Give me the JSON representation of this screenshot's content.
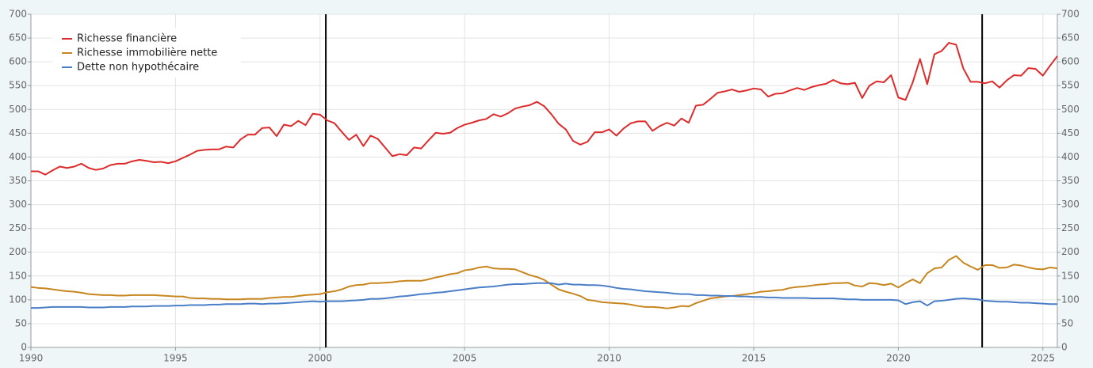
{
  "chart_data": {
    "type": "line",
    "x": [
      1990,
      1990.25,
      1990.5,
      1990.75,
      1991,
      1991.25,
      1991.5,
      1991.75,
      1992,
      1992.25,
      1992.5,
      1992.75,
      1993,
      1993.25,
      1993.5,
      1993.75,
      1994,
      1994.25,
      1994.5,
      1994.75,
      1995,
      1995.25,
      1995.5,
      1995.75,
      1996,
      1996.25,
      1996.5,
      1996.75,
      1997,
      1997.25,
      1997.5,
      1997.75,
      1998,
      1998.25,
      1998.5,
      1998.75,
      1999,
      1999.25,
      1999.5,
      1999.75,
      2000,
      2000.25,
      2000.5,
      2000.75,
      2001,
      2001.25,
      2001.5,
      2001.75,
      2002,
      2002.25,
      2002.5,
      2002.75,
      2003,
      2003.25,
      2003.5,
      2003.75,
      2004,
      2004.25,
      2004.5,
      2004.75,
      2005,
      2005.25,
      2005.5,
      2005.75,
      2006,
      2006.25,
      2006.5,
      2006.75,
      2007,
      2007.25,
      2007.5,
      2007.75,
      2008,
      2008.25,
      2008.5,
      2008.75,
      2009,
      2009.25,
      2009.5,
      2009.75,
      2010,
      2010.25,
      2010.5,
      2010.75,
      2011,
      2011.25,
      2011.5,
      2011.75,
      2012,
      2012.25,
      2012.5,
      2012.75,
      2013,
      2013.25,
      2013.5,
      2013.75,
      2014,
      2014.25,
      2014.5,
      2014.75,
      2015,
      2015.25,
      2015.5,
      2015.75,
      2016,
      2016.25,
      2016.5,
      2016.75,
      2017,
      2017.25,
      2017.5,
      2017.75,
      2018,
      2018.25,
      2018.5,
      2018.75,
      2019,
      2019.25,
      2019.5,
      2019.75,
      2020,
      2020.25,
      2020.5,
      2020.75,
      2021,
      2021.25,
      2021.5,
      2021.75,
      2022,
      2022.25,
      2022.5,
      2022.75,
      2023,
      2023.25,
      2023.5,
      2023.75,
      2024,
      2024.25,
      2024.5,
      2024.75,
      2025,
      2025.25,
      2025.5
    ],
    "series": [
      {
        "name": "Richesse financière",
        "color": "#dd2a2a",
        "values": [
          370,
          370,
          363,
          372,
          380,
          377,
          380,
          386,
          377,
          373,
          376,
          383,
          386,
          386,
          391,
          394,
          392,
          389,
          390,
          387,
          391,
          398,
          405,
          413,
          415,
          416,
          416,
          422,
          420,
          437,
          447,
          447,
          461,
          462,
          444,
          468,
          465,
          476,
          467,
          491,
          489,
          477,
          471,
          453,
          436,
          447,
          423,
          445,
          438,
          420,
          402,
          406,
          404,
          420,
          418,
          435,
          451,
          449,
          451,
          461,
          468,
          472,
          477,
          480,
          490,
          485,
          492,
          502,
          506,
          509,
          516,
          507,
          490,
          470,
          458,
          434,
          426,
          432,
          452,
          452,
          458,
          445,
          460,
          471,
          475,
          475,
          455,
          465,
          472,
          466,
          481,
          472,
          508,
          510,
          522,
          535,
          538,
          542,
          537,
          540,
          544,
          542,
          527,
          533,
          534,
          540,
          545,
          541,
          547,
          551,
          554,
          562,
          555,
          553,
          556,
          524,
          550,
          559,
          557,
          572,
          525,
          520,
          557,
          606,
          553,
          616,
          623,
          640,
          636,
          586,
          558,
          558,
          555,
          559,
          546,
          561,
          572,
          571,
          587,
          585,
          571,
          592,
          612
        ]
      },
      {
        "name": "Richesse immobilière nette",
        "color": "#c8861e",
        "values": [
          127,
          125,
          124,
          122,
          120,
          118,
          117,
          115,
          112,
          111,
          110,
          110,
          109,
          109,
          110,
          110,
          110,
          110,
          109,
          108,
          107,
          107,
          104,
          103,
          103,
          102,
          102,
          101,
          101,
          101,
          102,
          102,
          102,
          104,
          105,
          106,
          106,
          108,
          110,
          111,
          112,
          116,
          118,
          122,
          128,
          131,
          132,
          135,
          135,
          136,
          137,
          139,
          140,
          140,
          140,
          143,
          147,
          150,
          154,
          156,
          162,
          164,
          168,
          170,
          166,
          165,
          165,
          164,
          158,
          152,
          148,
          142,
          132,
          122,
          117,
          113,
          108,
          100,
          98,
          95,
          94,
          93,
          92,
          90,
          87,
          85,
          85,
          84,
          82,
          84,
          87,
          86,
          93,
          98,
          103,
          105,
          107,
          108,
          110,
          112,
          114,
          117,
          118,
          120,
          121,
          125,
          127,
          128,
          130,
          132,
          133,
          135,
          135,
          136,
          130,
          128,
          135,
          134,
          131,
          134,
          126,
          135,
          143,
          135,
          156,
          166,
          168,
          184,
          192,
          178,
          170,
          163,
          173,
          173,
          167,
          168,
          174,
          172,
          168,
          165,
          164,
          168,
          166
        ]
      },
      {
        "name": "Dette non hypothécaire",
        "color": "#4a7fc8",
        "values": [
          83,
          83,
          84,
          85,
          85,
          85,
          85,
          85,
          84,
          84,
          84,
          85,
          85,
          85,
          86,
          86,
          86,
          87,
          87,
          87,
          88,
          88,
          89,
          89,
          89,
          90,
          90,
          91,
          91,
          91,
          92,
          92,
          91,
          92,
          92,
          93,
          94,
          95,
          96,
          97,
          96,
          97,
          97,
          97,
          98,
          99,
          100,
          102,
          102,
          103,
          105,
          107,
          108,
          110,
          112,
          113,
          115,
          116,
          118,
          120,
          122,
          124,
          126,
          127,
          128,
          130,
          132,
          133,
          133,
          134,
          135,
          135,
          135,
          132,
          134,
          132,
          132,
          131,
          131,
          130,
          128,
          125,
          123,
          122,
          120,
          118,
          117,
          116,
          115,
          113,
          112,
          112,
          110,
          110,
          109,
          109,
          108,
          108,
          107,
          107,
          106,
          106,
          105,
          105,
          104,
          104,
          104,
          104,
          103,
          103,
          103,
          103,
          102,
          101,
          101,
          100,
          100,
          100,
          100,
          100,
          99,
          91,
          95,
          97,
          88,
          97,
          98,
          100,
          102,
          103,
          102,
          101,
          98,
          97,
          96,
          96,
          95,
          94,
          94,
          93,
          92,
          91,
          91
        ]
      }
    ],
    "xlim": [
      1990,
      2025.5
    ],
    "xticks": [
      1990,
      1995,
      2000,
      2005,
      2010,
      2015,
      2020,
      2025
    ],
    "ylim": [
      0,
      700
    ],
    "yticks": [
      0,
      50,
      100,
      150,
      200,
      250,
      300,
      350,
      400,
      450,
      500,
      550,
      600,
      650,
      700
    ],
    "vlines": [
      2000.2,
      2022.9
    ],
    "grid": true,
    "legend": "top-left"
  }
}
